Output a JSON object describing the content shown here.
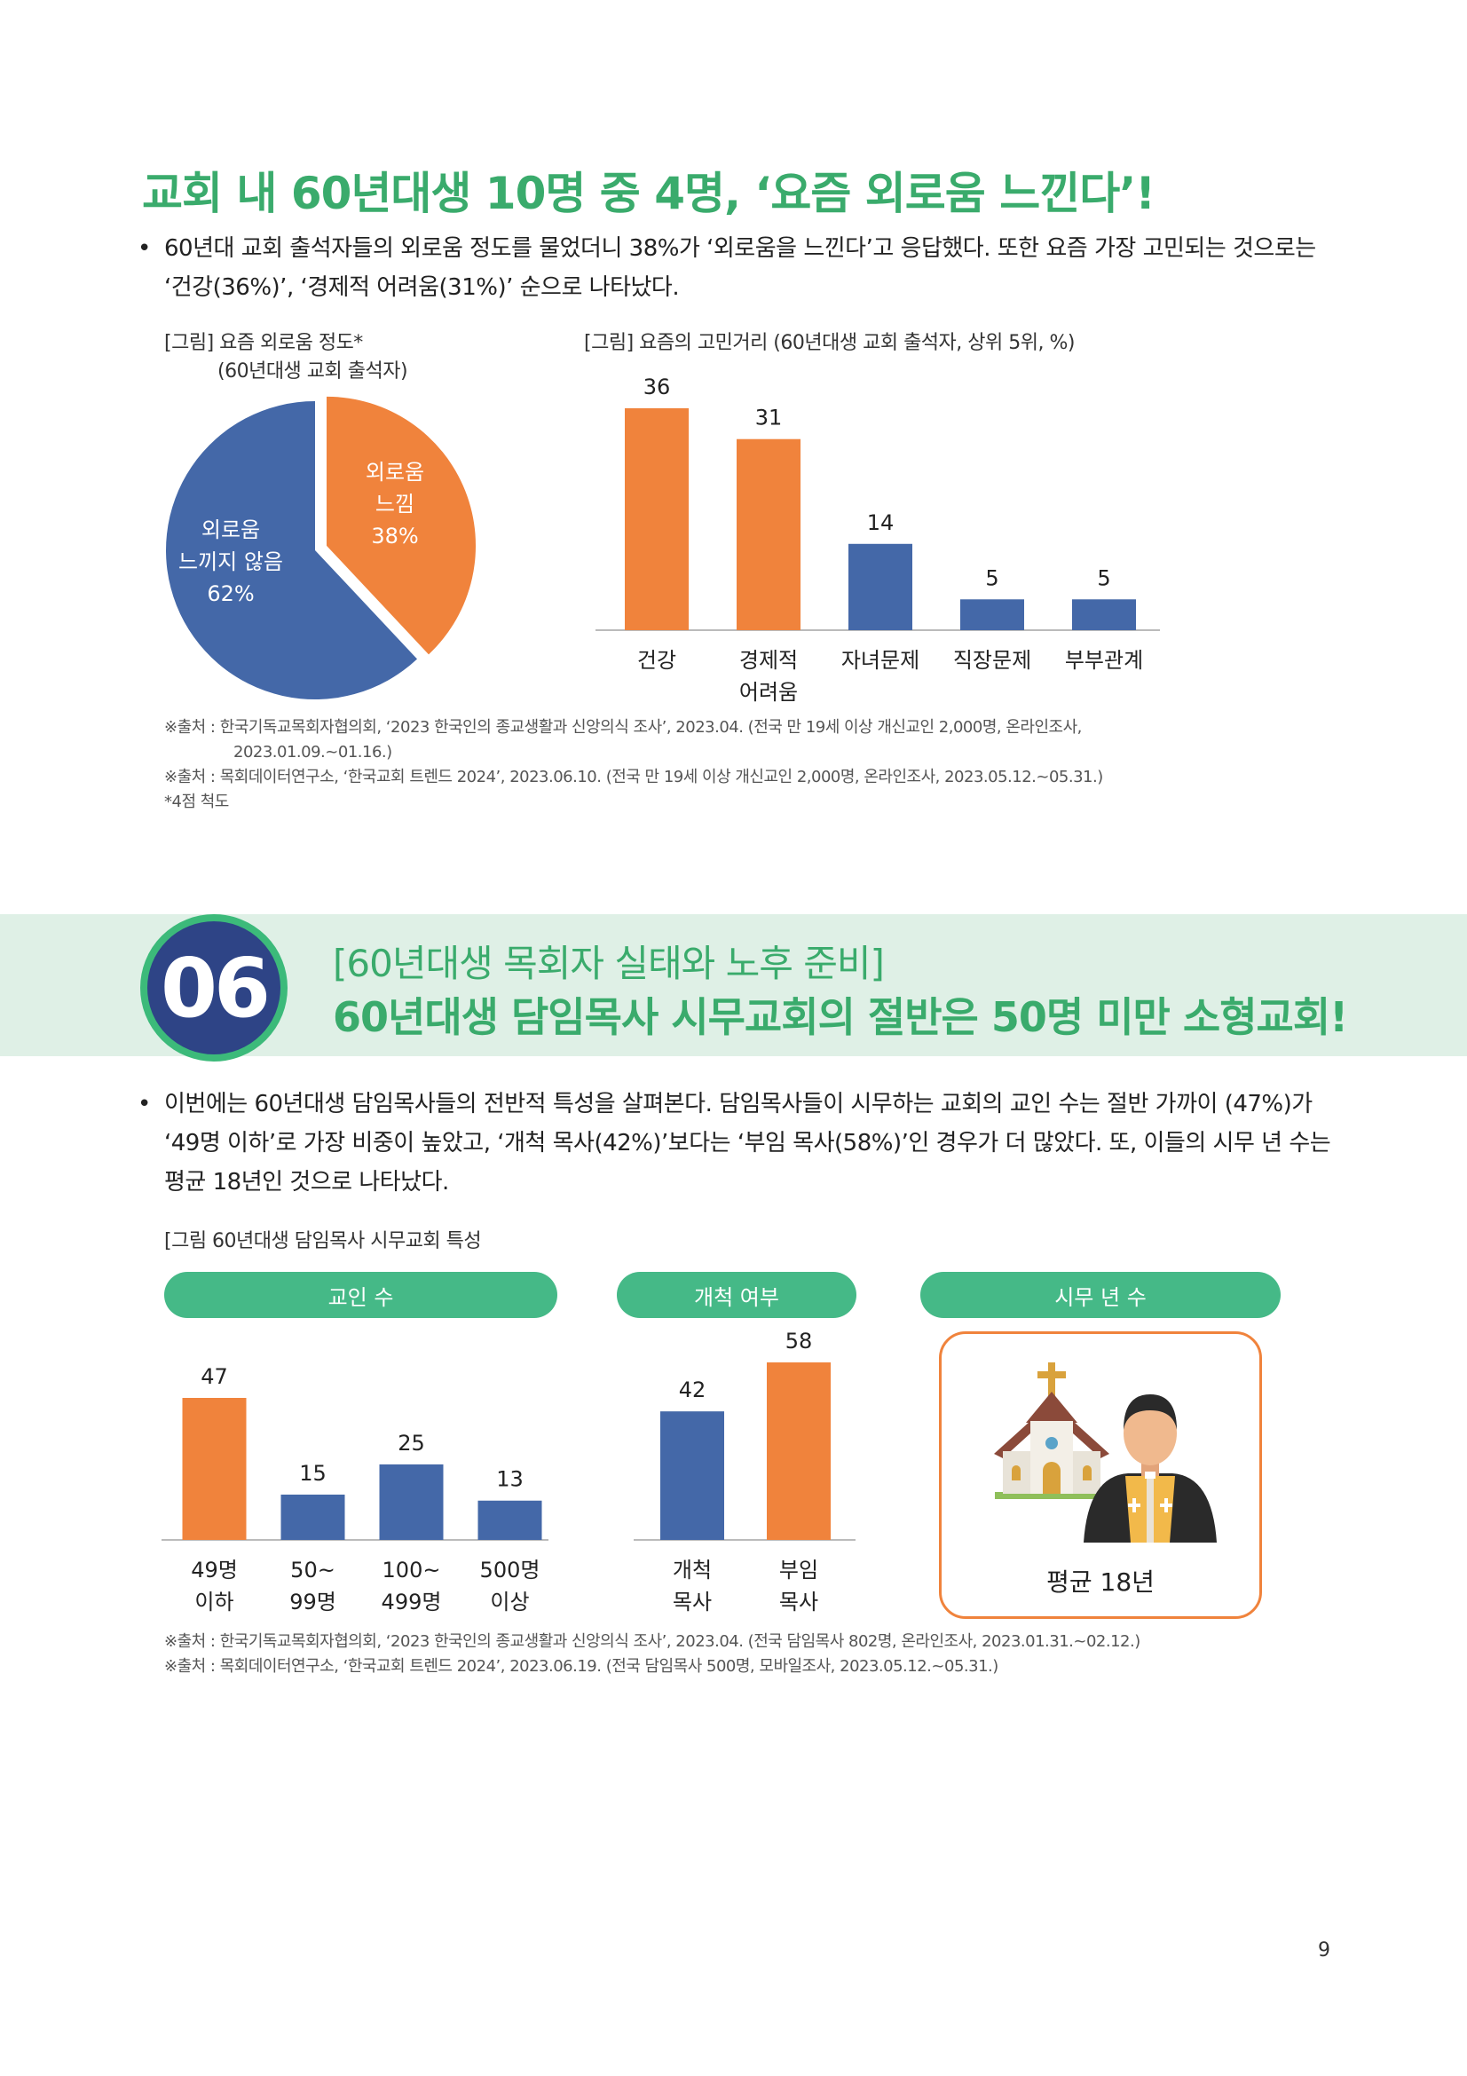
{
  "section1": {
    "title": "교회 내 60년대생 10명 중 4명, ‘요즘 외로움 느낀다’!",
    "bullet": "•",
    "paragraph": "60년대 교회 출석자들의 외로움 정도를 물었더니 38%가 ‘외로움을 느낀다’고 응답했다. 또한 요즘 가장 고민되는 것으로는 ‘건강(36%)’, ‘경제적 어려움(31%)’ 순으로 나타났다.",
    "pie_fig": {
      "label_line1": "[그림] 요즘 외로움 정도*",
      "label_line2": "(60년대생 교회 출석자)"
    },
    "bar_fig": {
      "label": "[그림] 요즘의 고민거리 (60년대생 교회 출석자, 상위 5위, %)"
    },
    "sources": [
      "※출처 : 한국기독교목회자협의회, ‘2023 한국인의 종교생활과 신앙의식 조사’, 2023.04. (전국 만 19세 이상 개신교인 2,000명, 온라인조사,",
      "2023.01.09.~01.16.)",
      "※출처 : 목회데이터연구소, ‘한국교회 트렌드 2024’, 2023.06.10. (전국 만 19세 이상 개신교인 2,000명, 온라인조사, 2023.05.12.~05.31.)",
      "*4점 척도"
    ]
  },
  "section2": {
    "number": "06",
    "subtitle": "[60년대생 목회자 실태와 노후 준비]",
    "title": "60년대생 담임목사 시무교회의 절반은 50명 미만 소형교회!",
    "bullet": "•",
    "paragraph": "이번에는 60년대생 담임목사들의 전반적 특성을 살펴본다. 담임목사들이 시무하는 교회의 교인 수는 절반 가까이 (47%)가 ‘49명 이하’로 가장 비중이 높았고, ‘개척 목사(42%)’보다는 ‘부임 목사(58%)’인 경우가 더 많았다. 또, 이들의 시무 년 수는 평균 18년인 것으로 나타났다.",
    "fig_label": "[그림 60년대생 담임목사 시무교회 특성",
    "pills": {
      "members": "교인 수",
      "pioneer": "개척 여부",
      "years": "시무 년 수"
    },
    "avg_years": "평균 18년",
    "sources": [
      "※출처 : 한국기독교목회자협의회, ‘2023 한국인의 종교생활과 신앙의식 조사’, 2023.04. (전국 담임목사 802명, 온라인조사, 2023.01.31.~02.12.)",
      "※출처 : 목회데이터연구소, ‘한국교회 트렌드 2024’, 2023.06.19. (전국 담임목사 500명, 모바일조사, 2023.05.12.~05.31.)"
    ]
  },
  "page_number": "9",
  "colors": {
    "green": "#3aab6c",
    "orange": "#f0833c",
    "blue": "#4468a8",
    "navy": "#2e4486",
    "band": "#dff0e6"
  },
  "icons": {
    "church": "church-icon",
    "pastor": "pastor-icon"
  },
  "chart_data": [
    {
      "type": "pie",
      "slices": [
        {
          "label": "외로움 느낌",
          "value": 38,
          "text": [
            "외로움",
            "느낌",
            "38%"
          ],
          "color": "#f0833c"
        },
        {
          "label": "외로움 느끼지 않음",
          "value": 62,
          "text": [
            "외로움",
            "느끼지 않음",
            "62%"
          ],
          "color": "#4468a8"
        }
      ]
    },
    {
      "type": "bar",
      "categories": [
        [
          "건강"
        ],
        [
          "경제적",
          "어려움"
        ],
        [
          "자녀문제"
        ],
        [
          "직장문제"
        ],
        [
          "부부관계"
        ]
      ],
      "values": [
        36,
        31,
        14,
        5,
        5
      ],
      "colors": [
        "#f0833c",
        "#f0833c",
        "#4468a8",
        "#4468a8",
        "#4468a8"
      ],
      "ylim": [
        0,
        36
      ]
    },
    {
      "type": "bar",
      "categories": [
        [
          "49명",
          "이하"
        ],
        [
          "50~",
          "99명"
        ],
        [
          "100~",
          "499명"
        ],
        [
          "500명",
          "이상"
        ]
      ],
      "values": [
        47,
        15,
        25,
        13
      ],
      "colors": [
        "#f0833c",
        "#4468a8",
        "#4468a8",
        "#4468a8"
      ],
      "ylim": [
        0,
        47
      ]
    },
    {
      "type": "bar",
      "categories": [
        [
          "개척",
          "목사"
        ],
        [
          "부임",
          "목사"
        ]
      ],
      "values": [
        42,
        58
      ],
      "colors": [
        "#4468a8",
        "#f0833c"
      ],
      "ylim": [
        0,
        58
      ]
    }
  ]
}
